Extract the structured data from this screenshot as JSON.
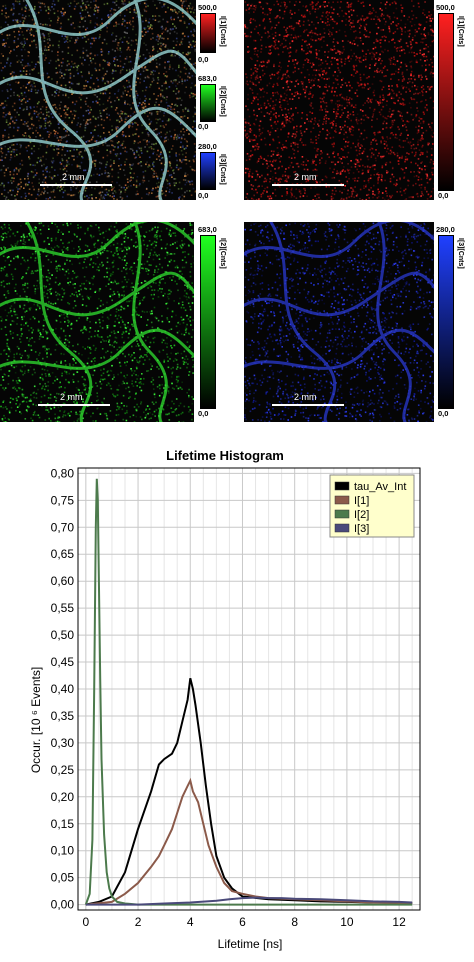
{
  "images": [
    {
      "id": "overlay",
      "scale_label": "2 mm"
    },
    {
      "id": "i1",
      "scale_label": "2 mm",
      "colorbar": {
        "title": "I[1][Cnts]",
        "max": "500,0",
        "min": "0,0",
        "color": "#ff2020"
      }
    },
    {
      "id": "i2",
      "scale_label": "2 mm",
      "colorbar": {
        "title": "I[2][Cnts]",
        "max": "683,0",
        "min": "0,0",
        "color": "#20ff20"
      }
    },
    {
      "id": "i3",
      "scale_label": "2 mm",
      "colorbar": {
        "title": "I[3][Cnts]",
        "max": "280,0",
        "min": "0,0",
        "color": "#2040ff"
      }
    }
  ],
  "overlay_colorbars": [
    {
      "title": "I[1][Cnts]",
      "max": "500,0",
      "min": "0,0",
      "color": "#ff2020"
    },
    {
      "title": "I[2][Cnts]",
      "max": "683,0",
      "min": "0,0",
      "color": "#20ff20"
    },
    {
      "title": "I[3][Cnts]",
      "max": "280,0",
      "min": "0,0",
      "color": "#2040ff"
    }
  ],
  "chart_data": {
    "type": "line",
    "title": "Lifetime Histogram",
    "xlabel": "Lifetime [ns]",
    "ylabel": "Occur. [10 ⁶ Events]",
    "xlim": [
      -0.3,
      12.8
    ],
    "ylim": [
      -0.01,
      0.81
    ],
    "xticks": [
      0,
      2,
      4,
      6,
      8,
      10,
      12
    ],
    "yticks": [
      "0,00",
      "0,05",
      "0,10",
      "0,15",
      "0,20",
      "0,25",
      "0,30",
      "0,35",
      "0,40",
      "0,45",
      "0,50",
      "0,55",
      "0,60",
      "0,65",
      "0,70",
      "0,75",
      "0,80"
    ],
    "grid": true,
    "legend_position": "top-right",
    "series": [
      {
        "name": "tau_Av_Int",
        "color": "#000000",
        "x": [
          0,
          0.5,
          1.0,
          1.5,
          2.0,
          2.5,
          2.8,
          3.0,
          3.3,
          3.5,
          3.7,
          3.9,
          4.0,
          4.1,
          4.2,
          4.4,
          4.6,
          4.8,
          5.0,
          5.3,
          5.6,
          6.0,
          7.0,
          8.0,
          9.0,
          10.0,
          11.0,
          12.0,
          12.5
        ],
        "y": [
          0.0,
          0.005,
          0.015,
          0.06,
          0.14,
          0.21,
          0.26,
          0.27,
          0.28,
          0.3,
          0.34,
          0.38,
          0.42,
          0.4,
          0.37,
          0.3,
          0.22,
          0.15,
          0.09,
          0.05,
          0.03,
          0.015,
          0.01,
          0.008,
          0.006,
          0.005,
          0.004,
          0.003,
          0.003
        ]
      },
      {
        "name": "I[1]",
        "color": "#8b5a4a",
        "x": [
          0,
          1.0,
          1.5,
          2.0,
          2.5,
          2.8,
          3.0,
          3.3,
          3.5,
          3.7,
          3.9,
          4.0,
          4.1,
          4.3,
          4.5,
          4.7,
          5.0,
          5.3,
          5.6,
          6.0,
          6.5,
          7.0,
          8.0,
          9.0,
          10.0,
          11.0,
          12.0,
          12.5
        ],
        "y": [
          0.0,
          0.005,
          0.02,
          0.04,
          0.07,
          0.09,
          0.11,
          0.14,
          0.17,
          0.2,
          0.22,
          0.23,
          0.21,
          0.19,
          0.15,
          0.11,
          0.07,
          0.04,
          0.025,
          0.02,
          0.015,
          0.012,
          0.01,
          0.008,
          0.006,
          0.004,
          0.003,
          0.002
        ]
      },
      {
        "name": "I[2]",
        "color": "#4c7a4c",
        "x": [
          0,
          0.15,
          0.25,
          0.32,
          0.38,
          0.42,
          0.46,
          0.5,
          0.55,
          0.6,
          0.7,
          0.8,
          0.9,
          1.0,
          1.2,
          1.5,
          2.0,
          3.0,
          4.0,
          5.0,
          6.0,
          8.0,
          10.0,
          12.5
        ],
        "y": [
          0.0,
          0.02,
          0.12,
          0.4,
          0.7,
          0.79,
          0.75,
          0.6,
          0.42,
          0.27,
          0.13,
          0.06,
          0.03,
          0.015,
          0.005,
          0.002,
          0.0,
          0.0,
          0.0,
          0.0,
          0.0,
          0.0,
          0.0,
          0.0
        ]
      },
      {
        "name": "I[3]",
        "color": "#4a4a7a",
        "x": [
          0,
          2.0,
          3.0,
          4.0,
          5.0,
          5.5,
          6.0,
          6.5,
          7.0,
          7.5,
          8.0,
          9.0,
          10.0,
          11.0,
          12.0,
          12.5
        ],
        "y": [
          0.0,
          0.0,
          0.002,
          0.004,
          0.007,
          0.01,
          0.012,
          0.013,
          0.012,
          0.012,
          0.011,
          0.01,
          0.008,
          0.006,
          0.005,
          0.004
        ]
      }
    ]
  }
}
